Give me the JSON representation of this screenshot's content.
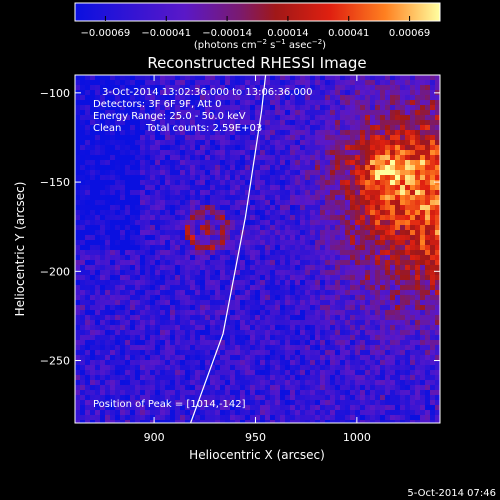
{
  "chart_data": {
    "type": "heatmap",
    "title": "Reconstructed RHESSI Image",
    "xlabel": "Heliocentric X (arcsec)",
    "ylabel": "Heliocentric Y (arcsec)",
    "xlim": [
      861,
      1041
    ],
    "ylim": [
      -285,
      -90
    ],
    "x_ticks": [
      900,
      950,
      1000
    ],
    "x_tick_labels": [
      "900",
      "950",
      "1000"
    ],
    "y_ticks": [
      -100,
      -150,
      -200,
      -250
    ],
    "y_tick_labels": [
      "−100",
      "−150",
      "−200",
      "−250"
    ],
    "colorbar": {
      "ticks": [
        "−0.00069",
        "−0.00041",
        "−0.00014",
        "0.00014",
        "0.00041",
        "0.00069"
      ],
      "unit_label": "(photons cm",
      "unit_sup1": "−2",
      "unit_mid": " s",
      "unit_sup2": "−1",
      "unit_mid2": " asec",
      "unit_sup3": "−2",
      "unit_end": ")",
      "range": [
        -0.00069,
        0.00069
      ]
    },
    "annotations": {
      "time_range": "3-Oct-2014 13:02:36.000 to 13:06:36.000",
      "detectors": "Detectors: 3F 6F 9F, Att 0",
      "energy": "Energy Range: 25.0 - 50.0 keV",
      "method": "Clean",
      "counts": "Total counts: 2.59E+03",
      "peak": "Position of Peak = [1014,-142]"
    },
    "peak_position": [
      1014,
      -142
    ],
    "limb_curve": [
      [
        918,
        -285
      ],
      [
        934,
        -235
      ],
      [
        945,
        -170
      ],
      [
        953,
        -110
      ],
      [
        955,
        -90
      ]
    ],
    "footer_date": "5-Oct-2014 07:46"
  }
}
